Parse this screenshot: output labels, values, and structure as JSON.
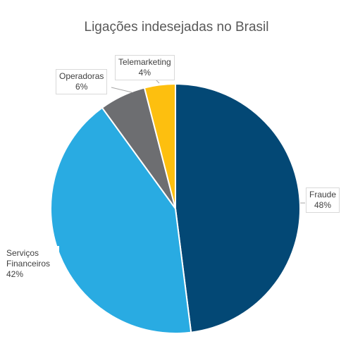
{
  "chart_data": {
    "type": "pie",
    "title": "Ligações indesejadas no Brasil",
    "slices": [
      {
        "label": "Fraude",
        "value": 48,
        "value_label": "48%",
        "color": "#034875"
      },
      {
        "label": "Serviços Financeiros",
        "value": 42,
        "value_label": "42%",
        "color": "#29abe2"
      },
      {
        "label": "Operadoras",
        "value": 6,
        "value_label": "6%",
        "color": "#6d6e71"
      },
      {
        "label": "Telemarketing",
        "value": 4,
        "value_label": "4%",
        "color": "#fdbf0f"
      }
    ],
    "start_angle_deg": 0,
    "direction": "clockwise",
    "legend": "none"
  }
}
